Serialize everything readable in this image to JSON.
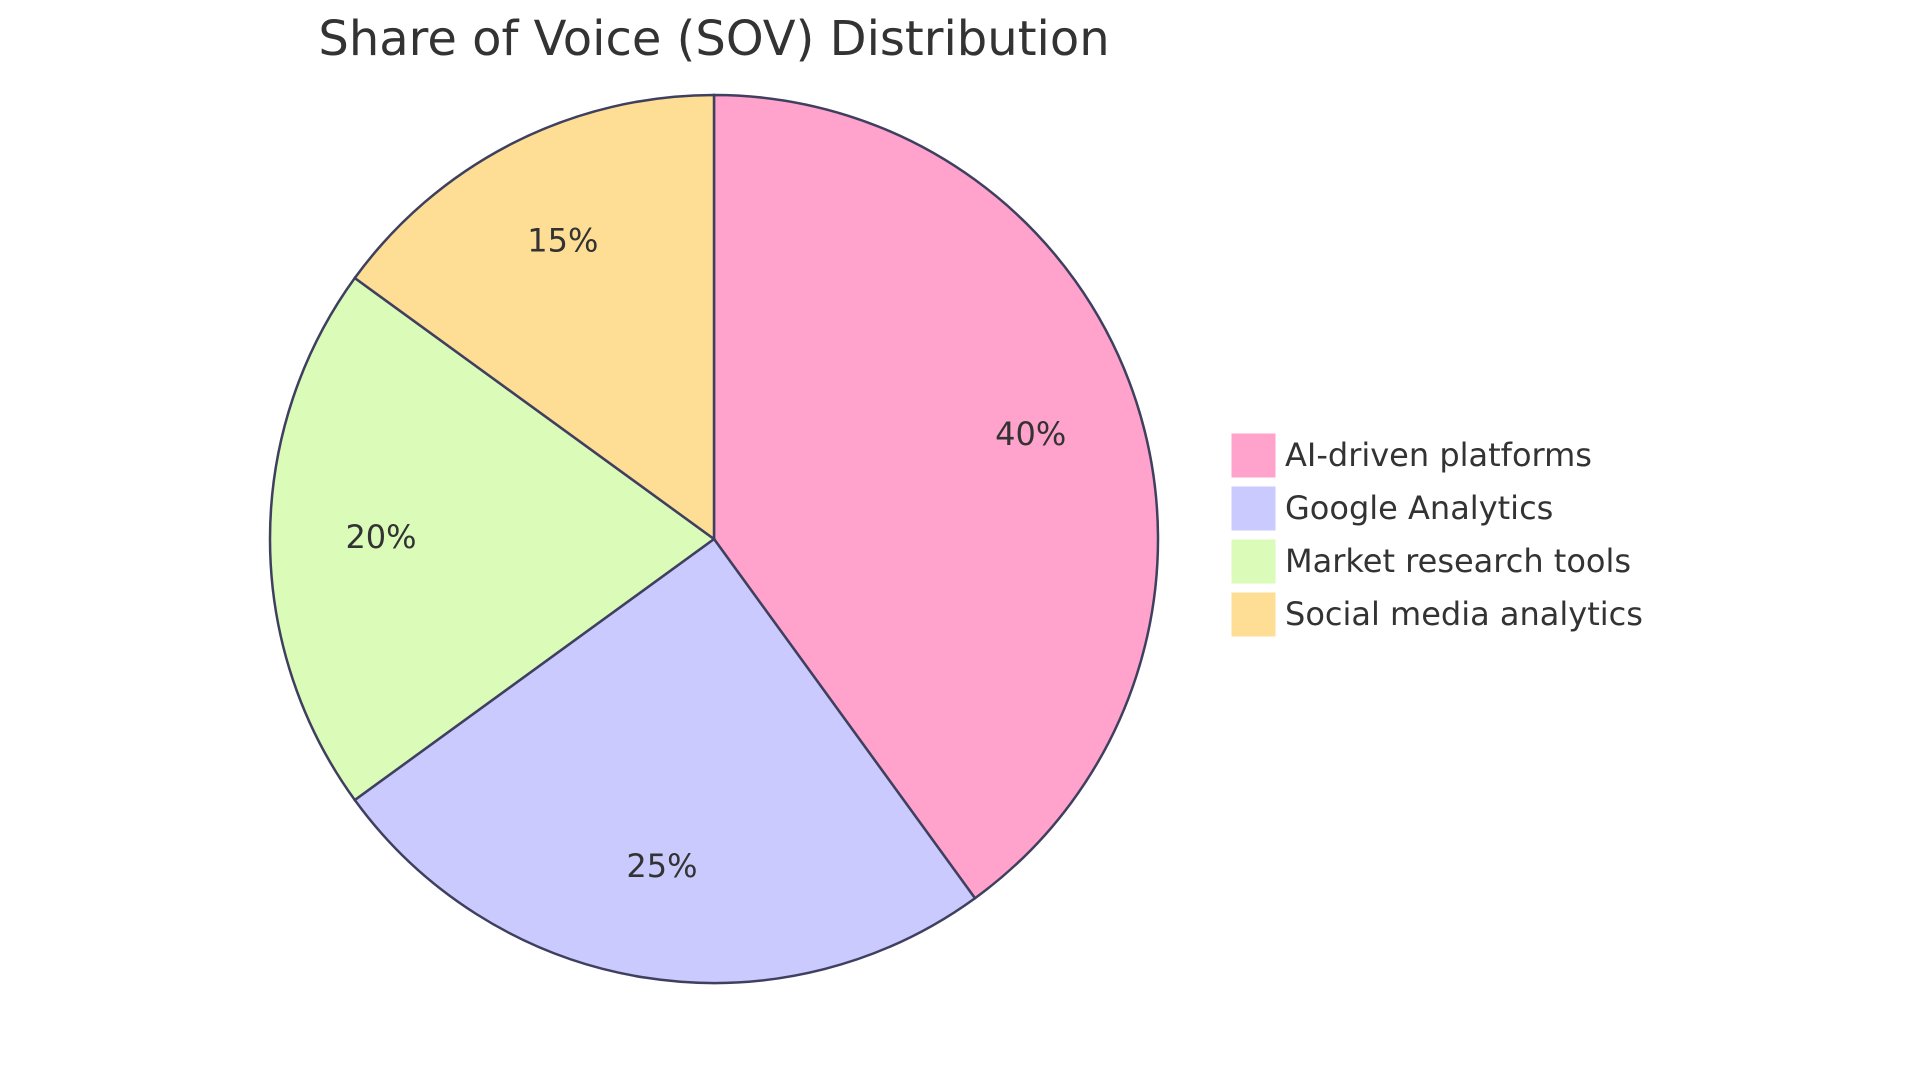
{
  "chart_data": {
    "type": "pie",
    "title": "Share of Voice (SOV) Distribution",
    "categories": [
      "AI-driven platforms",
      "Google Analytics",
      "Market research tools",
      "Social media analytics"
    ],
    "values": [
      40,
      25,
      20,
      15
    ],
    "value_labels": [
      "40%",
      "25%",
      "20%",
      "15%"
    ],
    "colors": [
      "#ffa3cd",
      "#cacafe",
      "#dbfbb9",
      "#fede95"
    ],
    "legend": "right"
  }
}
